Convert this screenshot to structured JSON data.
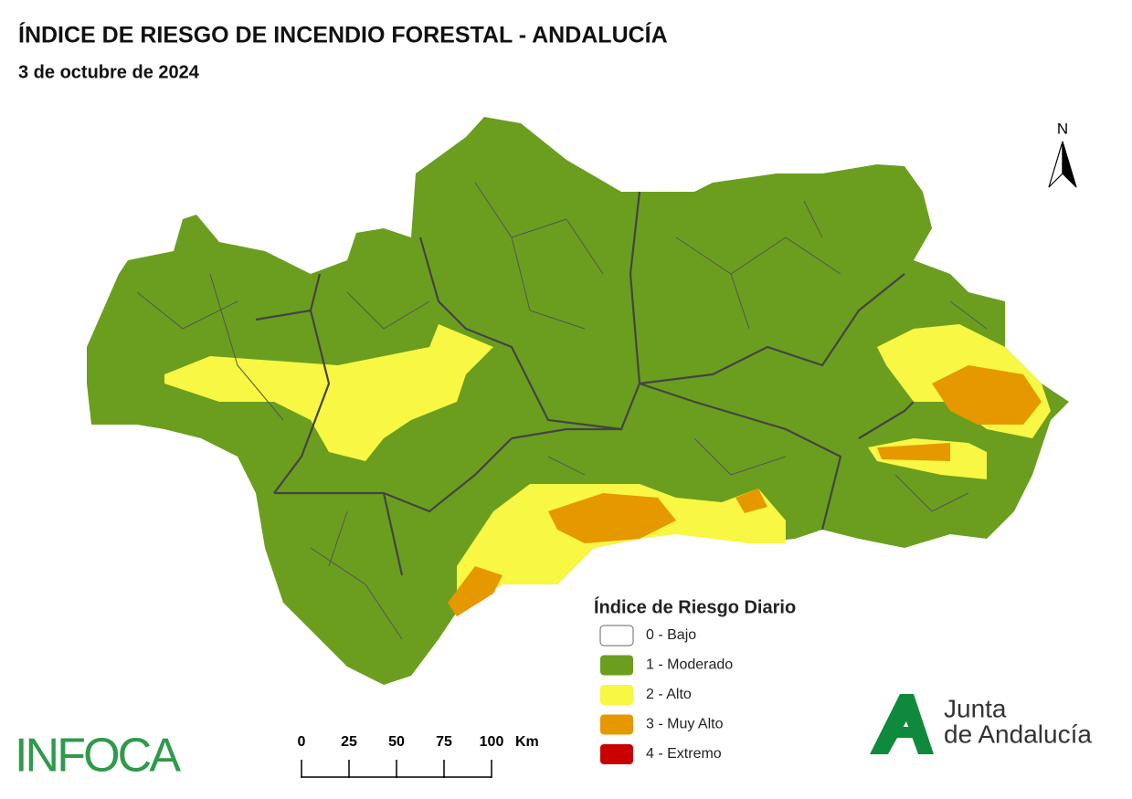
{
  "header": {
    "title": "ÍNDICE DE RIESGO DE INCENDIO FORESTAL - ANDALUCÍA",
    "subtitle": "3 de octubre de 2024"
  },
  "north": "N",
  "legend": {
    "title": "Índice de Riesgo Diario",
    "items": [
      {
        "label": "0 - Bajo",
        "color": "#ffffff"
      },
      {
        "label": "1 - Moderado",
        "color": "#6b9e1e"
      },
      {
        "label": "2 - Alto",
        "color": "#f7f744"
      },
      {
        "label": "3 - Muy Alto",
        "color": "#e69800"
      },
      {
        "label": "4 - Extremo",
        "color": "#c80000"
      }
    ]
  },
  "scale_bar": {
    "ticks": [
      0,
      25,
      50,
      75,
      100
    ],
    "unit": "Km"
  },
  "logos": {
    "infoca": "INFOCA",
    "junta": [
      "Junta",
      "de Andalucía"
    ]
  }
}
